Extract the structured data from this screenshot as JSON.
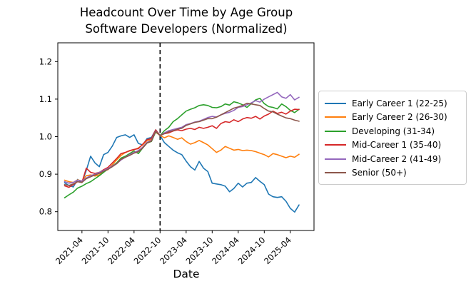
{
  "chart_data": {
    "type": "line",
    "title": "Headcount Over Time by Age Group",
    "subtitle": "Software Developers (Normalized)",
    "xlabel": "Date",
    "ylabel": "",
    "grid": false,
    "legend_position": "right",
    "ylim": [
      0.75,
      1.25
    ],
    "y_ticks": [
      "0.8",
      "0.9",
      "1.0",
      "1.1",
      "1.2"
    ],
    "x_tick_labels": [
      "2021-04",
      "2021-10",
      "2022-04",
      "2022-10",
      "2023-04",
      "2023-10",
      "2024-04",
      "2024-10",
      "2025-04"
    ],
    "vline_month": "2022-10",
    "x": [
      "2020-12",
      "2021-01",
      "2021-02",
      "2021-03",
      "2021-04",
      "2021-05",
      "2021-06",
      "2021-07",
      "2021-08",
      "2021-09",
      "2021-10",
      "2021-11",
      "2021-12",
      "2022-01",
      "2022-02",
      "2022-03",
      "2022-04",
      "2022-05",
      "2022-06",
      "2022-07",
      "2022-08",
      "2022-09",
      "2022-10",
      "2022-11",
      "2022-12",
      "2023-01",
      "2023-02",
      "2023-03",
      "2023-04",
      "2023-05",
      "2023-06",
      "2023-07",
      "2023-08",
      "2023-09",
      "2023-10",
      "2023-11",
      "2023-12",
      "2024-01",
      "2024-02",
      "2024-03",
      "2024-04",
      "2024-05",
      "2024-06",
      "2024-07",
      "2024-08",
      "2024-09",
      "2024-10",
      "2024-11",
      "2024-12",
      "2025-01",
      "2025-02",
      "2025-03",
      "2025-04",
      "2025-05",
      "2025-06"
    ],
    "series": [
      {
        "name": "Early Career 1 (22-25)",
        "color": "#1f77b4",
        "values": [
          0.877,
          0.87,
          0.866,
          0.886,
          0.878,
          0.91,
          0.948,
          0.93,
          0.92,
          0.952,
          0.958,
          0.975,
          0.998,
          1.002,
          1.005,
          0.998,
          1.005,
          0.982,
          0.978,
          0.995,
          0.998,
          1.018,
          1.003,
          0.984,
          0.974,
          0.964,
          0.957,
          0.952,
          0.935,
          0.92,
          0.911,
          0.934,
          0.916,
          0.907,
          0.876,
          0.874,
          0.872,
          0.868,
          0.853,
          0.862,
          0.876,
          0.866,
          0.876,
          0.878,
          0.891,
          0.881,
          0.872,
          0.847,
          0.84,
          0.838,
          0.84,
          0.828,
          0.809,
          0.799,
          0.818
        ]
      },
      {
        "name": "Early Career 2 (26-30)",
        "color": "#ff7f0e",
        "values": [
          0.884,
          0.88,
          0.878,
          0.885,
          0.882,
          0.896,
          0.898,
          0.895,
          0.898,
          0.908,
          0.912,
          0.925,
          0.938,
          0.95,
          0.958,
          0.962,
          0.965,
          0.97,
          0.978,
          0.99,
          0.992,
          1.012,
          1.003,
          0.997,
          1.002,
          0.998,
          0.993,
          0.997,
          0.987,
          0.98,
          0.984,
          0.99,
          0.984,
          0.978,
          0.968,
          0.958,
          0.964,
          0.974,
          0.969,
          0.964,
          0.966,
          0.963,
          0.964,
          0.963,
          0.96,
          0.956,
          0.952,
          0.946,
          0.955,
          0.952,
          0.948,
          0.944,
          0.948,
          0.945,
          0.953
        ]
      },
      {
        "name": "Developing (31-34)",
        "color": "#2ca02c",
        "values": [
          0.837,
          0.845,
          0.852,
          0.863,
          0.868,
          0.875,
          0.88,
          0.888,
          0.896,
          0.905,
          0.914,
          0.922,
          0.93,
          0.943,
          0.948,
          0.955,
          0.962,
          0.955,
          0.97,
          0.983,
          0.987,
          1.013,
          1.003,
          1.016,
          1.025,
          1.04,
          1.048,
          1.058,
          1.068,
          1.073,
          1.077,
          1.083,
          1.085,
          1.083,
          1.078,
          1.077,
          1.08,
          1.087,
          1.084,
          1.093,
          1.09,
          1.085,
          1.078,
          1.088,
          1.098,
          1.102,
          1.088,
          1.08,
          1.078,
          1.074,
          1.087,
          1.08,
          1.07,
          1.064,
          1.073
        ]
      },
      {
        "name": "Mid-Career 1 (35-40)",
        "color": "#d62728",
        "values": [
          0.869,
          0.865,
          0.872,
          0.88,
          0.878,
          0.916,
          0.905,
          0.902,
          0.905,
          0.912,
          0.918,
          0.93,
          0.942,
          0.955,
          0.958,
          0.963,
          0.966,
          0.968,
          0.98,
          0.992,
          0.995,
          1.018,
          1.003,
          1.008,
          1.01,
          1.015,
          1.018,
          1.016,
          1.02,
          1.022,
          1.019,
          1.025,
          1.022,
          1.025,
          1.029,
          1.022,
          1.035,
          1.04,
          1.038,
          1.045,
          1.04,
          1.047,
          1.051,
          1.049,
          1.054,
          1.047,
          1.055,
          1.06,
          1.068,
          1.062,
          1.065,
          1.06,
          1.068,
          1.073,
          1.072
        ]
      },
      {
        "name": "Mid-Career 2 (41-49)",
        "color": "#9467bd",
        "values": [
          0.88,
          0.876,
          0.878,
          0.884,
          0.882,
          0.89,
          0.896,
          0.9,
          0.905,
          0.91,
          0.915,
          0.922,
          0.928,
          0.938,
          0.945,
          0.952,
          0.958,
          0.963,
          0.972,
          0.985,
          0.99,
          1.015,
          1.003,
          1.01,
          1.016,
          1.019,
          1.022,
          1.025,
          1.032,
          1.035,
          1.039,
          1.041,
          1.046,
          1.051,
          1.054,
          1.052,
          1.058,
          1.062,
          1.065,
          1.07,
          1.078,
          1.08,
          1.085,
          1.09,
          1.096,
          1.092,
          1.1,
          1.106,
          1.112,
          1.118,
          1.106,
          1.102,
          1.112,
          1.098,
          1.105
        ]
      },
      {
        "name": "Senior (50+)",
        "color": "#8c564b",
        "values": [
          0.872,
          0.87,
          0.874,
          0.88,
          0.878,
          0.888,
          0.893,
          0.898,
          0.902,
          0.908,
          0.913,
          0.92,
          0.928,
          0.94,
          0.945,
          0.95,
          0.956,
          0.96,
          0.97,
          0.983,
          0.988,
          1.014,
          1.003,
          1.008,
          1.013,
          1.016,
          1.02,
          1.022,
          1.03,
          1.034,
          1.038,
          1.04,
          1.044,
          1.048,
          1.048,
          1.052,
          1.058,
          1.064,
          1.07,
          1.076,
          1.079,
          1.083,
          1.089,
          1.087,
          1.085,
          1.083,
          1.075,
          1.068,
          1.066,
          1.06,
          1.055,
          1.05,
          1.048,
          1.044,
          1.041
        ]
      }
    ]
  }
}
